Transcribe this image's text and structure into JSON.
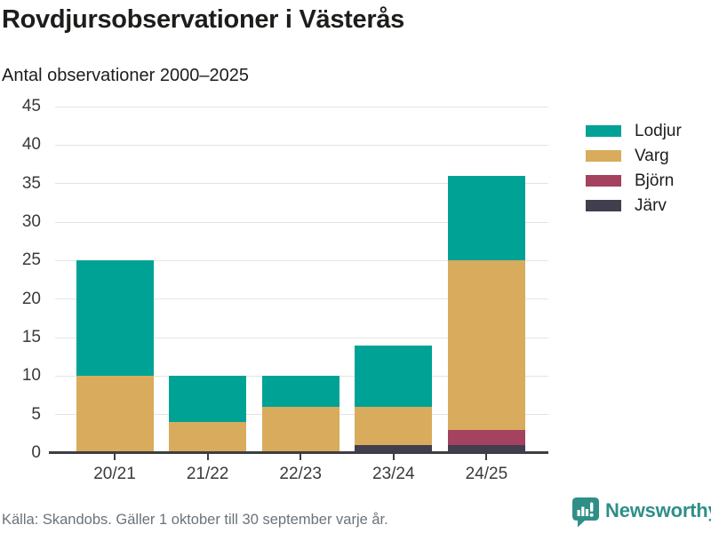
{
  "header": {
    "title": "Rovdjursobservationer i Västerås",
    "subtitle": "Antal observationer 2000–2025"
  },
  "chart_data": {
    "type": "bar",
    "stacked": true,
    "title": "Rovdjursobservationer i Västerås",
    "subtitle": "Antal observationer 2000–2025",
    "categories": [
      "20/21",
      "21/22",
      "22/23",
      "23/24",
      "24/25"
    ],
    "series": [
      {
        "name": "Lodjur",
        "color": "#00A296",
        "values": [
          15,
          6,
          4,
          8,
          11
        ]
      },
      {
        "name": "Varg",
        "color": "#D8AC5C",
        "values": [
          10,
          4,
          6,
          5,
          22
        ]
      },
      {
        "name": "Björn",
        "color": "#A4425F",
        "values": [
          0,
          0,
          0,
          0,
          2
        ]
      },
      {
        "name": "Järv",
        "color": "#413E4D",
        "values": [
          0,
          0,
          0,
          1,
          1
        ]
      }
    ],
    "stack_order_bottom_to_top": [
      "Järv",
      "Björn",
      "Varg",
      "Lodjur"
    ],
    "totals": [
      25,
      10,
      10,
      14,
      36
    ],
    "xlabel": "",
    "ylabel": "",
    "ylim": [
      0,
      45
    ],
    "ytick_step": 5,
    "yticks": [
      0,
      5,
      10,
      15,
      20,
      25,
      30,
      35,
      40,
      45
    ],
    "grid": "horizontal",
    "legend_position": "right",
    "legend_order": [
      "Lodjur",
      "Varg",
      "Björn",
      "Järv"
    ]
  },
  "footer": {
    "source": "Källa: Skandobs. Gäller 1 oktober till 30 september varje år."
  },
  "branding": {
    "name": "Newsworthy",
    "icon": "newsworthy-speech-bubble-chart-icon",
    "color": "#2F8F88"
  }
}
